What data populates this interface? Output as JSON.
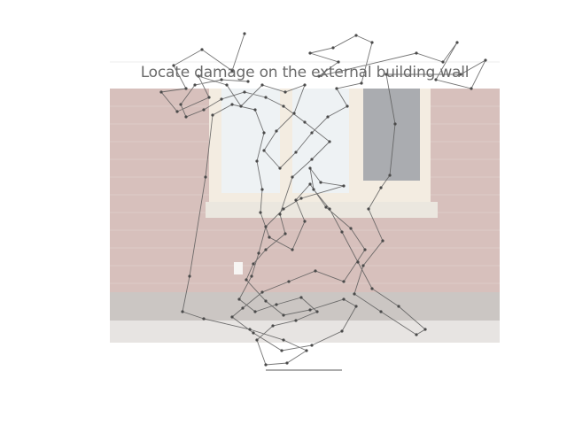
{
  "figure": {
    "task_text": "Locate damage on the external building wall"
  },
  "photo": {
    "subject": "brick wall with window",
    "colors": {
      "brick": "#c9a9a3",
      "mortar_light": "#d8c4c0",
      "foundation": "#b8b1ad",
      "sidewalk": "#dedbd8",
      "window_frame": "#efe6d6",
      "glass_light": "#e8eef1",
      "glass_dark": "#8a8d93",
      "sill": "#e4ded3"
    }
  },
  "trace": {
    "stroke_color": "#5a5a5a",
    "point_color": "#4a4a4a"
  }
}
